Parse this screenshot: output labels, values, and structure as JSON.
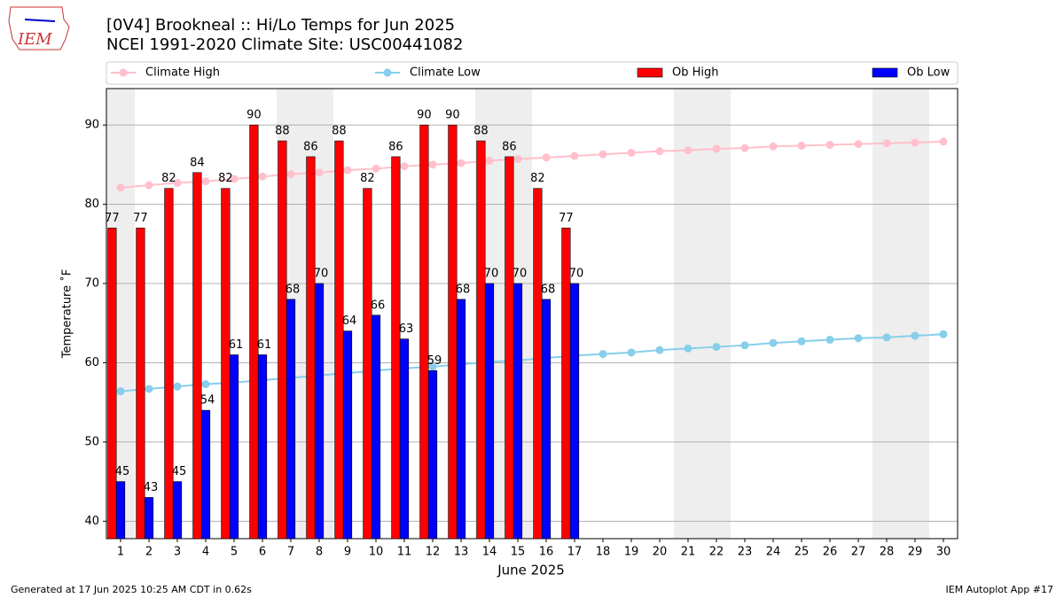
{
  "logo_text": "IEM",
  "footer_left": "Generated at 17 Jun 2025 10:25 AM CDT in 0.62s",
  "footer_right": "IEM Autoplot App #17",
  "chart_data": {
    "type": "bar",
    "title": "[0V4] Brookneal :: Hi/Lo Temps for Jun 2025",
    "subtitle": "NCEI 1991-2020 Climate Site: USC00441082",
    "x_label": "June 2025",
    "y_label": "Temperature ˚F",
    "categories": [
      "1",
      "2",
      "3",
      "4",
      "5",
      "6",
      "7",
      "8",
      "9",
      "10",
      "11",
      "12",
      "13",
      "14",
      "15",
      "16",
      "17",
      "18",
      "19",
      "20",
      "21",
      "22",
      "23",
      "24",
      "25",
      "26",
      "27",
      "28",
      "29",
      "30"
    ],
    "ylim": [
      37.8,
      94.6
    ],
    "yticks": [
      40,
      50,
      60,
      70,
      80,
      90
    ],
    "grid": true,
    "series": [
      {
        "name": "Climate High",
        "type": "line",
        "color": "#ffc0cb",
        "values": [
          82.1,
          82.4,
          82.7,
          82.9,
          83.2,
          83.5,
          83.8,
          84.0,
          84.3,
          84.5,
          84.8,
          85.0,
          85.2,
          85.5,
          85.7,
          85.9,
          86.1,
          86.3,
          86.5,
          86.7,
          86.8,
          87.0,
          87.1,
          87.3,
          87.4,
          87.5,
          87.6,
          87.7,
          87.8,
          87.9
        ]
      },
      {
        "name": "Climate Low",
        "type": "line",
        "color": "#87ceeb",
        "values": [
          56.4,
          56.7,
          57.0,
          57.3,
          57.5,
          57.8,
          58.1,
          58.4,
          58.7,
          59.0,
          59.3,
          59.5,
          59.8,
          60.1,
          60.3,
          60.6,
          60.9,
          61.1,
          61.3,
          61.6,
          61.8,
          62.0,
          62.2,
          62.5,
          62.7,
          62.9,
          63.1,
          63.2,
          63.4,
          63.6
        ]
      },
      {
        "name": "Ob High",
        "type": "bar",
        "color": "#ff0000",
        "values": [
          77,
          77,
          82,
          84,
          82,
          90,
          88,
          86,
          88,
          82,
          86,
          90,
          90,
          88,
          86,
          82,
          77,
          null,
          null,
          null,
          null,
          null,
          null,
          null,
          null,
          null,
          null,
          null,
          null,
          null
        ]
      },
      {
        "name": "Ob Low",
        "type": "bar",
        "color": "#0000ff",
        "values": [
          45,
          43,
          45,
          54,
          61,
          61,
          68,
          70,
          64,
          66,
          63,
          59,
          68,
          70,
          70,
          68,
          70,
          null,
          null,
          null,
          null,
          null,
          null,
          null,
          null,
          null,
          null,
          null,
          null,
          null
        ]
      }
    ]
  }
}
